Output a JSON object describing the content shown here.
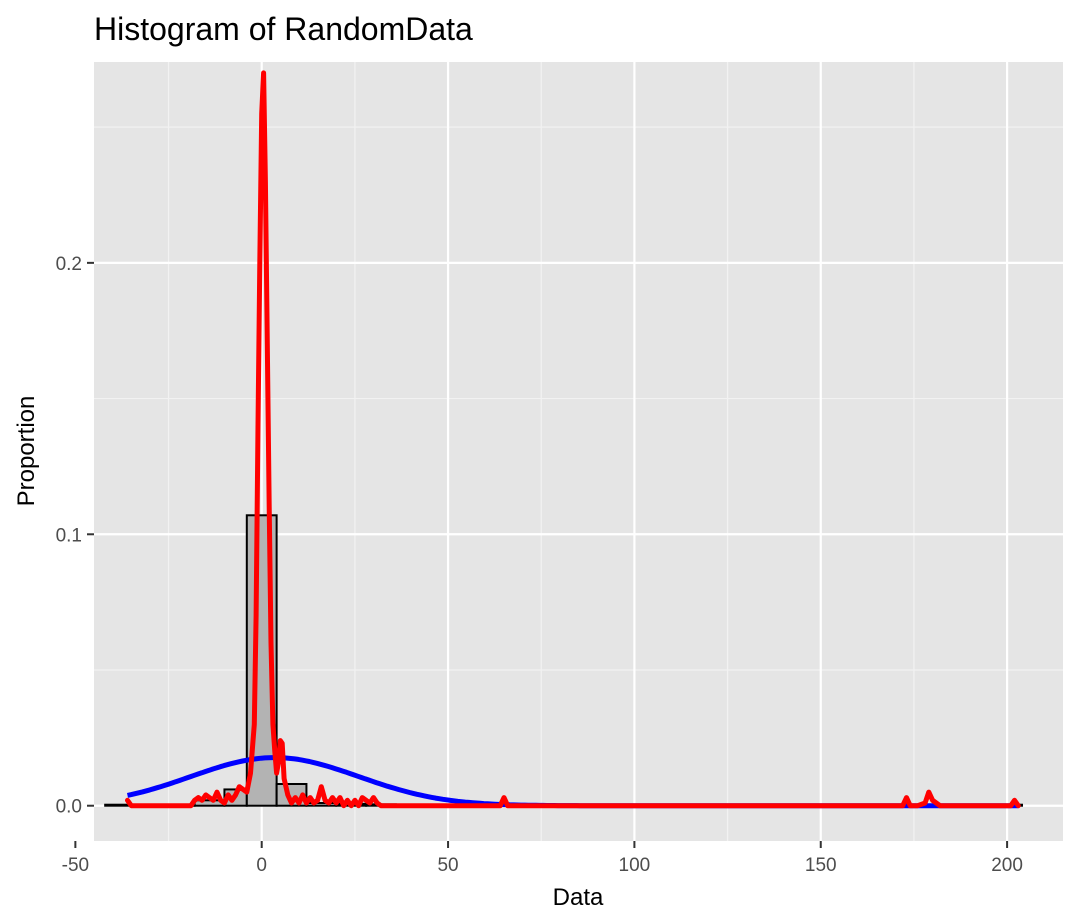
{
  "chart_data": {
    "type": "bar",
    "title": "Histogram of RandomData",
    "xlabel": "Data",
    "ylabel": "Proportion",
    "xlim": [
      -45,
      215
    ],
    "ylim": [
      -0.013,
      0.274
    ],
    "x_ticks": [
      -50,
      0,
      50,
      100,
      150,
      200
    ],
    "x_tick_labels": [
      "-50",
      "0",
      "50",
      "100",
      "150",
      "200"
    ],
    "x_minor_ticks": [
      -25,
      25,
      75,
      125,
      175
    ],
    "y_ticks": [
      0.0,
      0.1,
      0.2
    ],
    "y_tick_labels": [
      "0.0",
      "0.1",
      "0.2"
    ],
    "y_minor_ticks": [
      0.05,
      0.15,
      0.25
    ],
    "grid": true,
    "legend": "none",
    "bin_width": 8,
    "bins": [
      {
        "x0": -42,
        "x1": -34,
        "value": 0.0
      },
      {
        "x0": -34,
        "x1": -26,
        "value": 0.0
      },
      {
        "x0": -26,
        "x1": -18,
        "value": 0.0
      },
      {
        "x0": -18,
        "x1": -10,
        "value": 0.002
      },
      {
        "x0": -10,
        "x1": -4,
        "value": 0.006
      },
      {
        "x0": -4,
        "x1": 4,
        "value": 0.107
      },
      {
        "x0": 4,
        "x1": 12,
        "value": 0.008
      },
      {
        "x0": 12,
        "x1": 20,
        "value": 0.001
      },
      {
        "x0": 20,
        "x1": 28,
        "value": 0.0007
      },
      {
        "x0": 28,
        "x1": 36,
        "value": 0.0005
      },
      {
        "x0": 36,
        "x1": 204,
        "value": 0.0
      }
    ],
    "series": [
      {
        "label": "kernel density",
        "color": "#ff0000",
        "x": [
          -36,
          -35,
          -33,
          -30,
          -27,
          -24,
          -21,
          -19,
          -18,
          -17,
          -16,
          -15,
          -14,
          -13,
          -12,
          -11,
          -10,
          -9,
          -8,
          -7,
          -6,
          -5,
          -4,
          -3,
          -2,
          -1.5,
          -1,
          -0.5,
          0,
          0.5,
          1,
          1.5,
          2,
          2.5,
          3,
          3.5,
          4,
          4.5,
          5,
          5.5,
          6,
          7,
          8,
          9,
          10,
          11,
          12,
          13,
          14,
          15,
          16,
          17,
          18,
          19,
          20,
          21,
          22,
          23,
          24,
          25,
          26,
          27,
          28,
          29,
          30,
          31,
          32,
          34,
          36,
          40,
          50,
          60,
          64,
          65,
          66,
          68,
          80,
          120,
          160,
          170,
          172,
          173,
          174,
          176,
          178,
          179,
          180,
          182,
          190,
          200,
          201,
          202,
          203
        ],
        "y": [
          0.002,
          0.0,
          0.0,
          0.0,
          0.0,
          0.0,
          0.0,
          0.0,
          0.002,
          0.003,
          0.002,
          0.004,
          0.003,
          0.002,
          0.005,
          0.002,
          0.001,
          0.004,
          0.002,
          0.004,
          0.007,
          0.006,
          0.005,
          0.012,
          0.03,
          0.07,
          0.14,
          0.2,
          0.255,
          0.27,
          0.23,
          0.17,
          0.11,
          0.06,
          0.03,
          0.02,
          0.012,
          0.016,
          0.024,
          0.023,
          0.01,
          0.004,
          0.001,
          0.003,
          0.001,
          0.004,
          0.001,
          0.003,
          0.001,
          0.002,
          0.007,
          0.002,
          0.001,
          0.003,
          0.001,
          0.003,
          0.0,
          0.002,
          0.0,
          0.002,
          0.0,
          0.003,
          0.002,
          0.001,
          0.003,
          0.001,
          0.0,
          0.0,
          0.0,
          0.0,
          0.0,
          0.0,
          0.0,
          0.003,
          0.0,
          0.0,
          0.0,
          0.0,
          0.0,
          0.0,
          0.0,
          0.003,
          0.0,
          0.0,
          0.001,
          0.005,
          0.002,
          0.0,
          0.0,
          0.0,
          0.0,
          0.002,
          0.0
        ]
      },
      {
        "label": "normal density",
        "color": "#0000ff",
        "mean": 3.5,
        "sd": 22.5,
        "x_range": [
          -36,
          203
        ]
      }
    ]
  }
}
